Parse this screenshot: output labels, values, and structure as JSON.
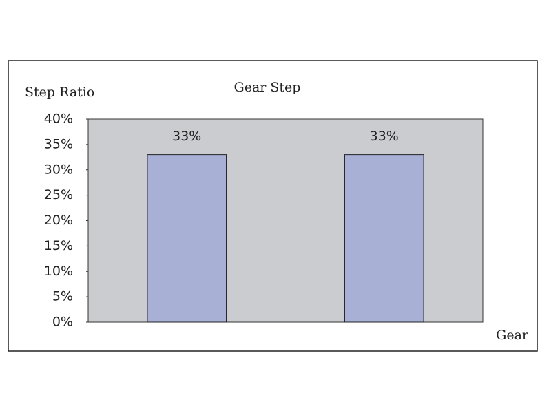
{
  "chart_data": {
    "type": "bar",
    "title": "Gear Step",
    "y_label": "Step Ratio",
    "x_label": "Gear",
    "categories": [
      null,
      null
    ],
    "values": [
      33,
      33
    ],
    "value_labels": [
      "33%",
      "33%"
    ],
    "color": "#a8b0d6",
    "plot_background": "#cbccd0",
    "ylim": [
      0,
      40
    ],
    "yticks": [
      {
        "value": 0,
        "label": "0%"
      },
      {
        "value": 5,
        "label": "5%"
      },
      {
        "value": 10,
        "label": "10%"
      },
      {
        "value": 15,
        "label": "15%"
      },
      {
        "value": 20,
        "label": "20%"
      },
      {
        "value": 25,
        "label": "25%"
      },
      {
        "value": 30,
        "label": "30%"
      },
      {
        "value": 35,
        "label": "35%"
      },
      {
        "value": 40,
        "label": "40%"
      }
    ],
    "grid": false
  }
}
